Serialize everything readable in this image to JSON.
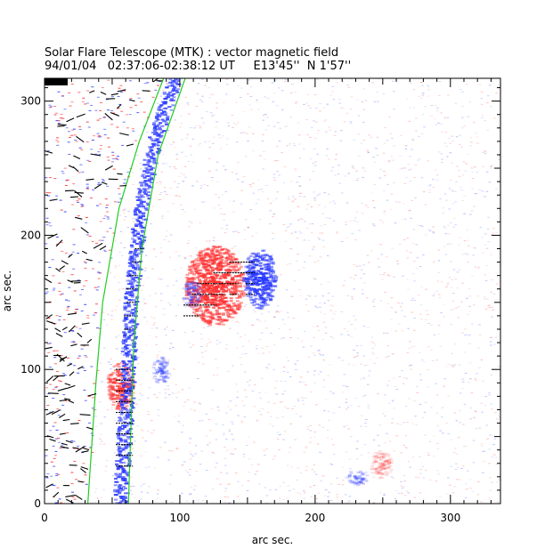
{
  "chart_data": {
    "type": "heatmap",
    "title": "Solar Flare Telescope (MTK) : vector magnetic field",
    "subtitle": "94/01/04   02:37:06-02:38:12 UT     E13'45''  N 1'57''",
    "xlabel": "arc sec.",
    "ylabel": "arc sec.",
    "xlim": [
      0,
      337
    ],
    "ylim": [
      0,
      317
    ],
    "xticks": [
      0,
      100,
      200,
      300
    ],
    "yticks": [
      0,
      100,
      200,
      300
    ],
    "colors": {
      "positive": "#ff3030",
      "negative": "#2838ff",
      "contour": "#22cc22",
      "arrows": "#000000"
    },
    "regions": [
      {
        "polarity": "positive",
        "center": [
          125,
          163
        ],
        "extent": [
          22,
          30
        ],
        "strength": 0.95
      },
      {
        "polarity": "negative",
        "center": [
          158,
          168
        ],
        "extent": [
          12,
          22
        ],
        "strength": 1.0
      },
      {
        "polarity": "negative",
        "center": [
          108,
          157
        ],
        "extent": [
          7,
          10
        ],
        "strength": 0.45
      },
      {
        "polarity": "positive",
        "center": [
          55,
          88
        ],
        "extent": [
          10,
          18
        ],
        "strength": 0.8
      },
      {
        "polarity": "negative",
        "center": [
          85,
          100
        ],
        "extent": [
          6,
          10
        ],
        "strength": 0.45
      },
      {
        "polarity": "negative",
        "center": [
          230,
          20
        ],
        "extent": [
          8,
          6
        ],
        "strength": 0.35
      },
      {
        "polarity": "positive",
        "center": [
          248,
          30
        ],
        "extent": [
          8,
          10
        ],
        "strength": 0.3
      }
    ],
    "limb_strip": {
      "polarity": "negative",
      "points": [
        [
          55,
          0
        ],
        [
          60,
          80
        ],
        [
          63,
          150
        ],
        [
          70,
          220
        ],
        [
          80,
          270
        ],
        [
          95,
          317
        ]
      ]
    },
    "contours": [
      {
        "points": [
          [
            32,
            0
          ],
          [
            36,
            60
          ],
          [
            38,
            90
          ],
          [
            43,
            150
          ],
          [
            55,
            220
          ],
          [
            70,
            270
          ],
          [
            88,
            317
          ]
        ]
      },
      {
        "points": [
          [
            62,
            0
          ],
          [
            64,
            60
          ],
          [
            66,
            120
          ],
          [
            72,
            190
          ],
          [
            84,
            260
          ],
          [
            104,
            317
          ]
        ]
      }
    ],
    "vectors": [
      {
        "x": 140,
        "y": 180
      },
      {
        "x": 146,
        "y": 180
      },
      {
        "x": 152,
        "y": 180
      },
      {
        "x": 128,
        "y": 172
      },
      {
        "x": 134,
        "y": 172
      },
      {
        "x": 140,
        "y": 172
      },
      {
        "x": 146,
        "y": 172
      },
      {
        "x": 152,
        "y": 172
      },
      {
        "x": 116,
        "y": 164
      },
      {
        "x": 122,
        "y": 164
      },
      {
        "x": 128,
        "y": 164
      },
      {
        "x": 134,
        "y": 164
      },
      {
        "x": 140,
        "y": 164
      },
      {
        "x": 152,
        "y": 164
      },
      {
        "x": 112,
        "y": 156
      },
      {
        "x": 118,
        "y": 156
      },
      {
        "x": 124,
        "y": 156
      },
      {
        "x": 130,
        "y": 156
      },
      {
        "x": 140,
        "y": 156
      },
      {
        "x": 152,
        "y": 156
      },
      {
        "x": 106,
        "y": 148
      },
      {
        "x": 112,
        "y": 148
      },
      {
        "x": 118,
        "y": 148
      },
      {
        "x": 124,
        "y": 148
      },
      {
        "x": 106,
        "y": 140
      },
      {
        "x": 112,
        "y": 140
      },
      {
        "x": 56,
        "y": 100
      },
      {
        "x": 62,
        "y": 100
      },
      {
        "x": 56,
        "y": 92
      },
      {
        "x": 62,
        "y": 92
      },
      {
        "x": 56,
        "y": 84
      },
      {
        "x": 62,
        "y": 84
      },
      {
        "x": 56,
        "y": 76
      },
      {
        "x": 62,
        "y": 76
      },
      {
        "x": 56,
        "y": 68
      },
      {
        "x": 62,
        "y": 68
      },
      {
        "x": 56,
        "y": 60
      },
      {
        "x": 62,
        "y": 60
      },
      {
        "x": 56,
        "y": 52
      },
      {
        "x": 62,
        "y": 52
      },
      {
        "x": 56,
        "y": 44
      },
      {
        "x": 62,
        "y": 44
      },
      {
        "x": 56,
        "y": 36
      },
      {
        "x": 62,
        "y": 36
      },
      {
        "x": 56,
        "y": 28
      },
      {
        "x": 62,
        "y": 28
      },
      {
        "x": 62,
        "y": 130
      },
      {
        "x": 62,
        "y": 140
      },
      {
        "x": 64,
        "y": 150
      },
      {
        "x": 64,
        "y": 160
      },
      {
        "x": 66,
        "y": 170
      },
      {
        "x": 68,
        "y": 180
      },
      {
        "x": 70,
        "y": 190
      }
    ]
  }
}
